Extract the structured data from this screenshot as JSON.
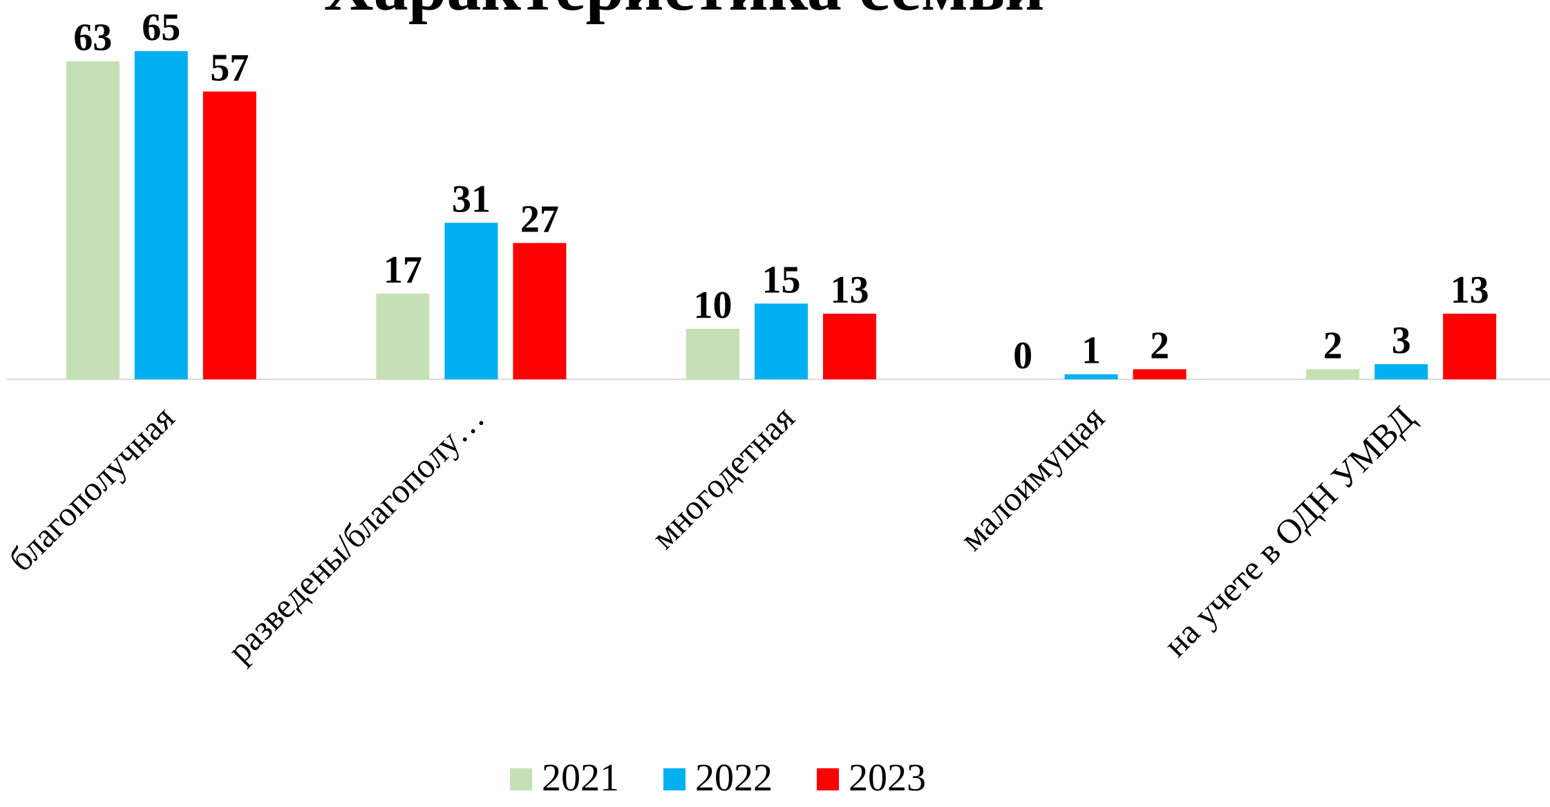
{
  "chart_data": {
    "type": "bar",
    "title": "Характеристика семьи",
    "categories": [
      "благополучная",
      "разведены/благополу…",
      "многодетная",
      "малоимущая",
      "на учете в ОДН УМВД"
    ],
    "series": [
      {
        "name": "2021",
        "color": "#c5e0b4",
        "values": [
          63,
          17,
          10,
          0,
          2
        ]
      },
      {
        "name": "2022",
        "color": "#00b0f0",
        "values": [
          65,
          31,
          15,
          1,
          3
        ]
      },
      {
        "name": "2023",
        "color": "#ff0000",
        "values": [
          57,
          27,
          13,
          2,
          13
        ]
      }
    ],
    "legend": "bottom"
  }
}
